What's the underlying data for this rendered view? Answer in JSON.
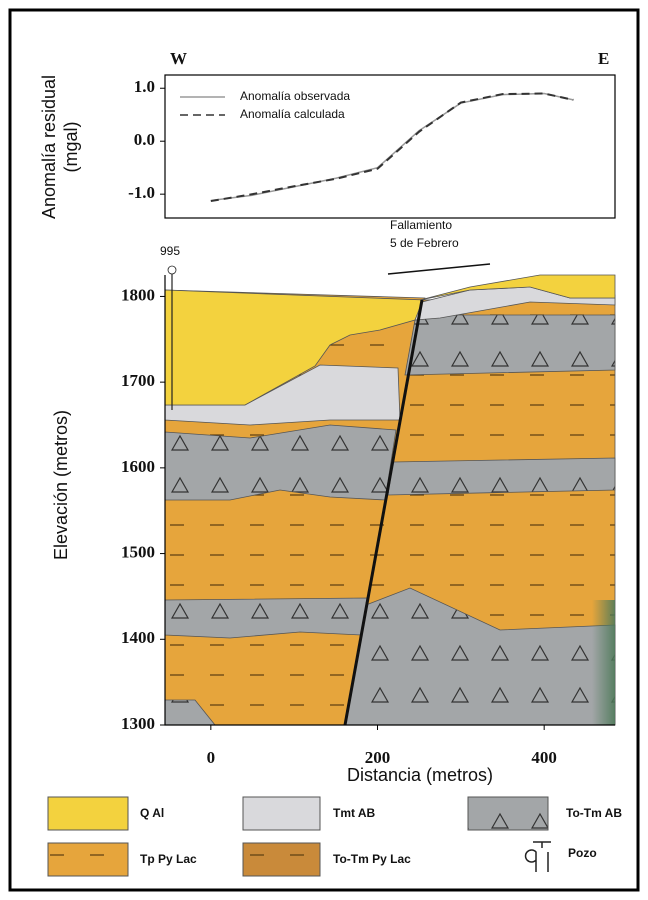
{
  "chart_data": [
    {
      "type": "line",
      "ylabel": [
        "Anomalía residual",
        "(mgal)"
      ],
      "annotations": [
        "W",
        "E"
      ],
      "x": [
        0,
        50,
        100,
        150,
        200,
        250,
        300,
        350,
        400,
        435
      ],
      "series": [
        {
          "name": "Anomalía observada",
          "color": "#9a9a9a",
          "dash": false,
          "values": [
            -1.12,
            -1.02,
            -0.86,
            -0.7,
            -0.5,
            0.2,
            0.72,
            0.88,
            0.9,
            0.78
          ]
        },
        {
          "name": "Anomalía calculada",
          "color": "#333333",
          "dash": true,
          "values": [
            -1.13,
            -1.0,
            -0.85,
            -0.71,
            -0.52,
            0.18,
            0.73,
            0.89,
            0.9,
            0.78
          ]
        }
      ],
      "xlim": [
        -55,
        485
      ],
      "ylim": [
        -1.45,
        1.25
      ],
      "yticks": [
        {
          "value": -1.0,
          "label": "-1.0"
        },
        {
          "value": 0.0,
          "label": "0.0"
        },
        {
          "value": 1.0,
          "label": "1.0"
        }
      ]
    },
    {
      "type": "section",
      "xlabel": "Distancia (metros)",
      "ylabel": "Elevación (metros)",
      "xlim": [
        -55,
        485
      ],
      "ylim": [
        1300,
        1825
      ],
      "xticks": [
        0,
        200,
        400
      ],
      "yticks": [
        1300,
        1400,
        1500,
        1600,
        1700,
        1800
      ],
      "well_label": "995",
      "annotations": [
        "Fallamiento",
        "5 de Febrero"
      ],
      "legend": [
        "Q Al",
        "Tmt AB",
        "To-Tm AB",
        "Tp Py Lac",
        "To-Tm Py Lac",
        "Pozo"
      ]
    }
  ]
}
